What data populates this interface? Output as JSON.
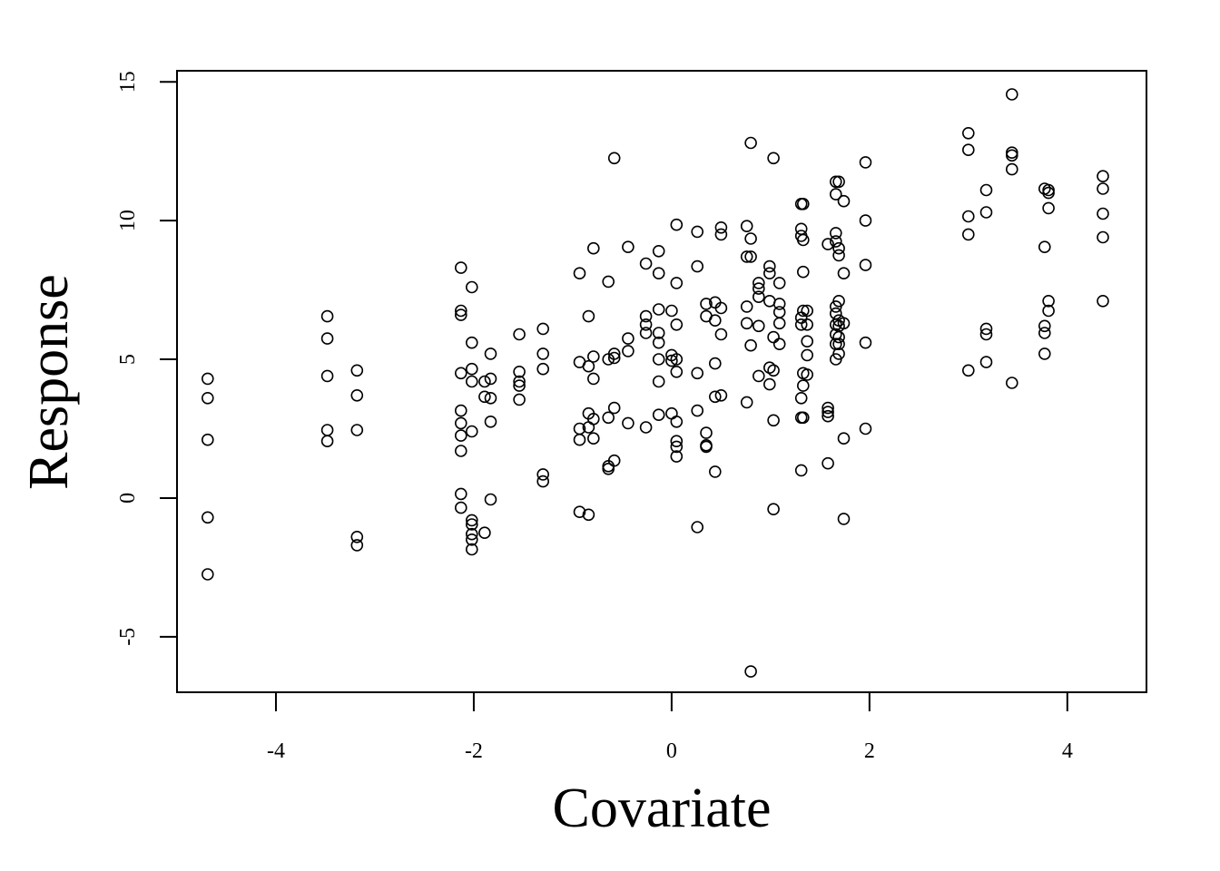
{
  "chart_data": {
    "type": "scatter",
    "title": "",
    "xlabel": "Covariate",
    "ylabel": "Response",
    "xlim": [
      -5.0,
      4.8
    ],
    "ylim": [
      -7.0,
      15.4
    ],
    "x_ticks": [
      -4,
      -2,
      0,
      2,
      4
    ],
    "y_ticks": [
      -5,
      0,
      5,
      10,
      15
    ],
    "x_tick_labels": [
      "-4",
      "-2",
      "0",
      "2",
      "4"
    ],
    "y_tick_labels": [
      "-5",
      "0",
      "5",
      "10",
      "15"
    ],
    "grid": false,
    "legend": "none",
    "marker": "open-circle",
    "colors": {
      "points": "#000000",
      "background": "#ffffff"
    },
    "points": [
      [
        -4.69,
        4.3
      ],
      [
        -4.69,
        3.6
      ],
      [
        -4.69,
        2.1
      ],
      [
        -4.69,
        -0.7
      ],
      [
        -4.69,
        -2.75
      ],
      [
        -3.48,
        6.55
      ],
      [
        -3.48,
        5.75
      ],
      [
        -3.48,
        4.4
      ],
      [
        -3.48,
        2.45
      ],
      [
        -3.48,
        2.05
      ],
      [
        -3.18,
        4.6
      ],
      [
        -3.18,
        3.7
      ],
      [
        -3.18,
        2.45
      ],
      [
        -3.18,
        -1.4
      ],
      [
        -3.18,
        -1.7
      ],
      [
        -2.13,
        8.3
      ],
      [
        -2.13,
        6.75
      ],
      [
        -2.13,
        6.6
      ],
      [
        -2.13,
        4.5
      ],
      [
        -2.13,
        3.15
      ],
      [
        -2.13,
        2.7
      ],
      [
        -2.13,
        2.25
      ],
      [
        -2.13,
        1.7
      ],
      [
        -2.13,
        0.15
      ],
      [
        -2.13,
        -0.35
      ],
      [
        -2.02,
        7.6
      ],
      [
        -2.02,
        5.6
      ],
      [
        -2.02,
        4.65
      ],
      [
        -2.02,
        4.2
      ],
      [
        -2.02,
        2.4
      ],
      [
        -2.02,
        -0.8
      ],
      [
        -2.02,
        -0.95
      ],
      [
        -2.02,
        -1.3
      ],
      [
        -2.02,
        -1.5
      ],
      [
        -2.02,
        -1.85
      ],
      [
        -1.89,
        4.2
      ],
      [
        -1.89,
        3.65
      ],
      [
        -1.89,
        -1.25
      ],
      [
        -1.83,
        5.2
      ],
      [
        -1.83,
        4.3
      ],
      [
        -1.83,
        3.6
      ],
      [
        -1.83,
        2.75
      ],
      [
        -1.83,
        -0.05
      ],
      [
        -1.54,
        5.9
      ],
      [
        -1.54,
        4.55
      ],
      [
        -1.54,
        4.2
      ],
      [
        -1.54,
        4.05
      ],
      [
        -1.54,
        3.55
      ],
      [
        -1.3,
        6.1
      ],
      [
        -1.3,
        5.2
      ],
      [
        -1.3,
        4.65
      ],
      [
        -1.3,
        0.85
      ],
      [
        -1.3,
        0.6
      ],
      [
        -0.93,
        8.1
      ],
      [
        -0.93,
        4.9
      ],
      [
        -0.93,
        2.5
      ],
      [
        -0.93,
        2.1
      ],
      [
        -0.93,
        -0.5
      ],
      [
        -0.84,
        6.55
      ],
      [
        -0.84,
        4.75
      ],
      [
        -0.84,
        3.05
      ],
      [
        -0.84,
        2.55
      ],
      [
        -0.84,
        -0.6
      ],
      [
        -0.79,
        9.0
      ],
      [
        -0.79,
        5.1
      ],
      [
        -0.79,
        4.3
      ],
      [
        -0.79,
        2.85
      ],
      [
        -0.79,
        2.15
      ],
      [
        -0.64,
        7.8
      ],
      [
        -0.64,
        5.0
      ],
      [
        -0.64,
        2.9
      ],
      [
        -0.64,
        1.15
      ],
      [
        -0.64,
        1.05
      ],
      [
        -0.58,
        12.25
      ],
      [
        -0.58,
        5.2
      ],
      [
        -0.58,
        5.05
      ],
      [
        -0.58,
        3.25
      ],
      [
        -0.58,
        1.35
      ],
      [
        -0.44,
        9.05
      ],
      [
        -0.44,
        5.75
      ],
      [
        -0.44,
        5.3
      ],
      [
        -0.44,
        2.7
      ],
      [
        -0.26,
        8.45
      ],
      [
        -0.26,
        6.55
      ],
      [
        -0.26,
        6.25
      ],
      [
        -0.26,
        5.95
      ],
      [
        -0.26,
        2.55
      ],
      [
        -0.13,
        8.9
      ],
      [
        -0.13,
        8.1
      ],
      [
        -0.13,
        6.8
      ],
      [
        -0.13,
        5.95
      ],
      [
        -0.13,
        5.6
      ],
      [
        -0.13,
        5.0
      ],
      [
        -0.13,
        4.2
      ],
      [
        -0.13,
        3.0
      ],
      [
        0.0,
        6.75
      ],
      [
        0.0,
        5.15
      ],
      [
        0.0,
        4.95
      ],
      [
        0.0,
        3.05
      ],
      [
        0.05,
        9.85
      ],
      [
        0.05,
        7.75
      ],
      [
        0.05,
        6.25
      ],
      [
        0.05,
        5.0
      ],
      [
        0.05,
        4.55
      ],
      [
        0.05,
        2.75
      ],
      [
        0.05,
        2.05
      ],
      [
        0.05,
        1.85
      ],
      [
        0.05,
        1.5
      ],
      [
        0.26,
        9.6
      ],
      [
        0.26,
        8.35
      ],
      [
        0.26,
        4.5
      ],
      [
        0.26,
        3.15
      ],
      [
        0.26,
        -1.05
      ],
      [
        0.35,
        7.0
      ],
      [
        0.35,
        6.55
      ],
      [
        0.35,
        2.35
      ],
      [
        0.35,
        1.9
      ],
      [
        0.35,
        1.85
      ],
      [
        0.44,
        7.05
      ],
      [
        0.44,
        6.4
      ],
      [
        0.44,
        4.85
      ],
      [
        0.44,
        3.65
      ],
      [
        0.44,
        0.95
      ],
      [
        0.5,
        9.75
      ],
      [
        0.5,
        9.5
      ],
      [
        0.5,
        6.85
      ],
      [
        0.5,
        5.9
      ],
      [
        0.5,
        3.7
      ],
      [
        0.76,
        9.8
      ],
      [
        0.76,
        8.7
      ],
      [
        0.76,
        6.9
      ],
      [
        0.76,
        6.3
      ],
      [
        0.76,
        3.45
      ],
      [
        0.8,
        12.8
      ],
      [
        0.8,
        9.35
      ],
      [
        0.8,
        8.7
      ],
      [
        0.8,
        5.5
      ],
      [
        0.8,
        -6.25
      ],
      [
        0.88,
        7.75
      ],
      [
        0.88,
        7.55
      ],
      [
        0.88,
        7.25
      ],
      [
        0.88,
        6.2
      ],
      [
        0.88,
        4.4
      ],
      [
        0.99,
        8.35
      ],
      [
        0.99,
        8.1
      ],
      [
        0.99,
        7.1
      ],
      [
        0.99,
        4.7
      ],
      [
        0.99,
        4.1
      ],
      [
        1.03,
        12.25
      ],
      [
        1.03,
        5.8
      ],
      [
        1.03,
        4.6
      ],
      [
        1.03,
        2.8
      ],
      [
        1.03,
        -0.4
      ],
      [
        1.09,
        7.75
      ],
      [
        1.09,
        7.0
      ],
      [
        1.09,
        6.7
      ],
      [
        1.09,
        6.3
      ],
      [
        1.09,
        5.55
      ],
      [
        1.31,
        10.6
      ],
      [
        1.31,
        9.7
      ],
      [
        1.31,
        9.45
      ],
      [
        1.31,
        6.5
      ],
      [
        1.31,
        6.25
      ],
      [
        1.31,
        3.6
      ],
      [
        1.31,
        2.9
      ],
      [
        1.31,
        1.0
      ],
      [
        1.33,
        10.6
      ],
      [
        1.33,
        9.3
      ],
      [
        1.33,
        8.15
      ],
      [
        1.33,
        6.75
      ],
      [
        1.33,
        4.5
      ],
      [
        1.33,
        4.05
      ],
      [
        1.33,
        2.9
      ],
      [
        1.37,
        6.75
      ],
      [
        1.37,
        6.25
      ],
      [
        1.37,
        5.65
      ],
      [
        1.37,
        5.15
      ],
      [
        1.37,
        4.45
      ],
      [
        1.58,
        9.15
      ],
      [
        1.58,
        3.25
      ],
      [
        1.58,
        3.1
      ],
      [
        1.58,
        2.95
      ],
      [
        1.58,
        1.25
      ],
      [
        1.66,
        11.4
      ],
      [
        1.66,
        10.95
      ],
      [
        1.66,
        9.55
      ],
      [
        1.66,
        9.25
      ],
      [
        1.66,
        6.9
      ],
      [
        1.66,
        6.65
      ],
      [
        1.66,
        6.25
      ],
      [
        1.66,
        5.9
      ],
      [
        1.66,
        5.55
      ],
      [
        1.66,
        5.0
      ],
      [
        1.69,
        11.4
      ],
      [
        1.69,
        9.0
      ],
      [
        1.69,
        8.75
      ],
      [
        1.69,
        7.1
      ],
      [
        1.69,
        6.4
      ],
      [
        1.69,
        6.2
      ],
      [
        1.69,
        5.8
      ],
      [
        1.69,
        5.55
      ],
      [
        1.69,
        5.2
      ],
      [
        1.74,
        10.7
      ],
      [
        1.74,
        8.1
      ],
      [
        1.74,
        6.3
      ],
      [
        1.74,
        2.15
      ],
      [
        1.74,
        -0.75
      ],
      [
        1.96,
        12.1
      ],
      [
        1.96,
        10.0
      ],
      [
        1.96,
        8.4
      ],
      [
        1.96,
        5.6
      ],
      [
        1.96,
        2.5
      ],
      [
        3.0,
        13.15
      ],
      [
        3.0,
        12.55
      ],
      [
        3.0,
        10.15
      ],
      [
        3.0,
        9.5
      ],
      [
        3.0,
        4.6
      ],
      [
        3.18,
        11.1
      ],
      [
        3.18,
        10.3
      ],
      [
        3.18,
        6.1
      ],
      [
        3.18,
        5.9
      ],
      [
        3.18,
        4.9
      ],
      [
        3.44,
        14.55
      ],
      [
        3.44,
        12.45
      ],
      [
        3.44,
        12.35
      ],
      [
        3.44,
        11.85
      ],
      [
        3.44,
        4.15
      ],
      [
        3.77,
        11.15
      ],
      [
        3.77,
        9.05
      ],
      [
        3.77,
        6.2
      ],
      [
        3.77,
        5.95
      ],
      [
        3.77,
        5.2
      ],
      [
        3.81,
        11.1
      ],
      [
        3.81,
        11.0
      ],
      [
        3.81,
        10.45
      ],
      [
        3.81,
        7.1
      ],
      [
        3.81,
        6.75
      ],
      [
        4.36,
        11.6
      ],
      [
        4.36,
        11.15
      ],
      [
        4.36,
        10.25
      ],
      [
        4.36,
        9.4
      ],
      [
        4.36,
        7.1
      ]
    ]
  }
}
